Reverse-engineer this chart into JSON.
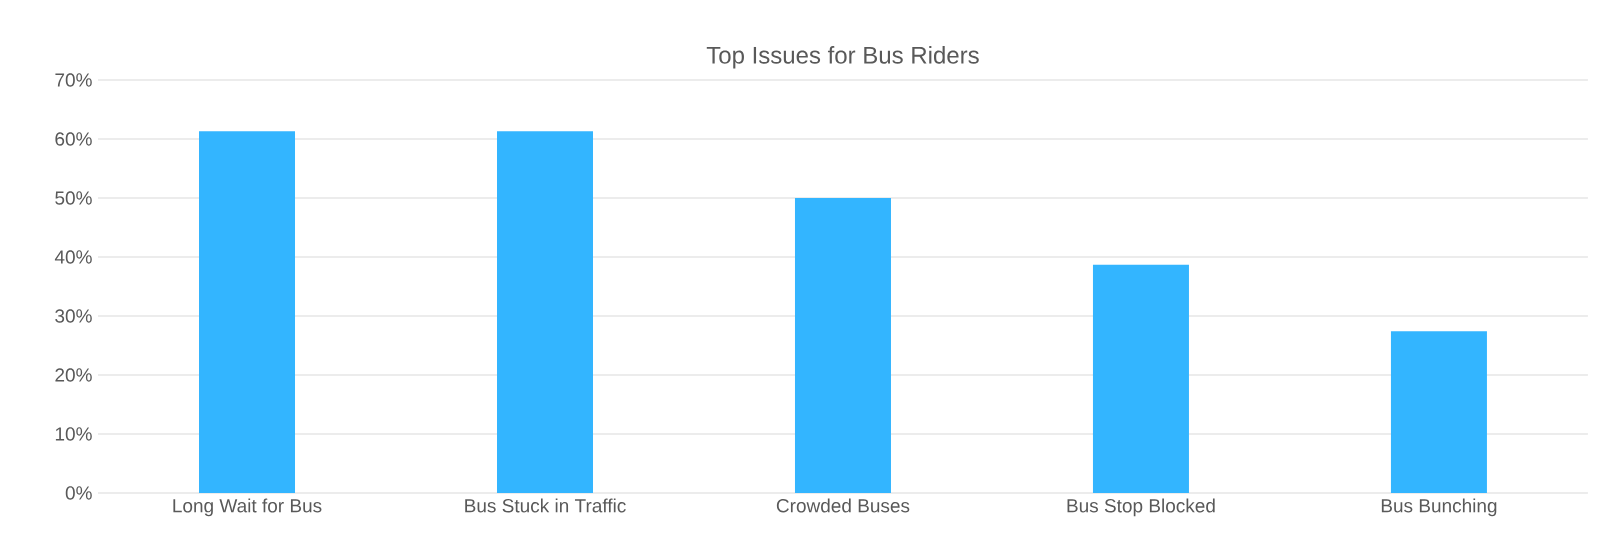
{
  "chart_data": {
    "type": "bar",
    "title": "Top Issues for Bus Riders",
    "categories": [
      "Long Wait for Bus",
      "Bus Stuck in Traffic",
      "Crowded Buses",
      "Bus Stop Blocked",
      "Bus Bunching"
    ],
    "values": [
      61.3,
      61.3,
      50.0,
      38.7,
      27.4
    ],
    "color": "#33b5ff",
    "ylim": [
      0,
      70
    ],
    "yticks": [
      {
        "value": 0,
        "label": "0%"
      },
      {
        "value": 10,
        "label": "10%"
      },
      {
        "value": 20,
        "label": "20%"
      },
      {
        "value": 30,
        "label": "30%"
      },
      {
        "value": 40,
        "label": "40%"
      },
      {
        "value": 50,
        "label": "50%"
      },
      {
        "value": 60,
        "label": "60%"
      },
      {
        "value": 70,
        "label": "70%"
      }
    ],
    "grid": "y"
  }
}
